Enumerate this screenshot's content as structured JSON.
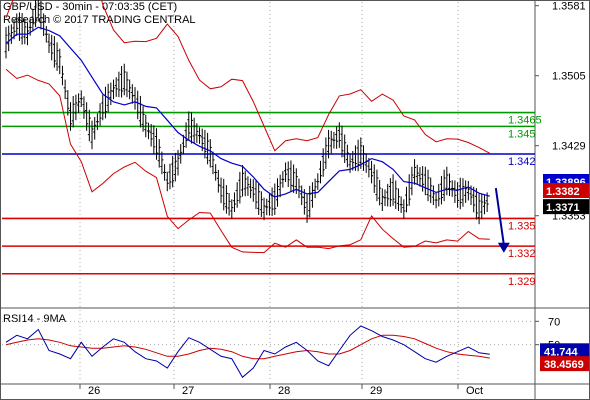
{
  "header": {
    "line1": "GBP/USD - 30min - 07:03:35 (CET)",
    "line2": "Research © 2017 TRADING CENTRAL"
  },
  "colors": {
    "bollinger": "#cc0000",
    "moving_average": "#0000cc",
    "price_bars": "#000000",
    "resistance": "#009900",
    "pivot": "#0000cc",
    "support": "#dd0000",
    "rsi": "#0000aa",
    "rsi_signal": "#cc0000",
    "arrow": "#000099"
  },
  "chart_data": [
    {
      "type": "candlestick",
      "title": "GBP/USD - 30min",
      "x_ticks": [
        "26",
        "27",
        "28",
        "29",
        "Oct"
      ],
      "y_ticks": [
        1.3581,
        1.3505,
        1.3429,
        1.3353
      ],
      "ylim": [
        1.3255,
        1.3585
      ],
      "price_path": [
        1.354,
        1.356,
        1.355,
        1.358,
        1.354,
        1.352,
        1.346,
        1.348,
        1.344,
        1.347,
        1.349,
        1.35,
        1.348,
        1.345,
        1.343,
        1.339,
        1.341,
        1.345,
        1.344,
        1.342,
        1.338,
        1.336,
        1.339,
        1.338,
        1.336,
        1.337,
        1.34,
        1.339,
        1.336,
        1.339,
        1.343,
        1.344,
        1.341,
        1.342,
        1.34,
        1.337,
        1.338,
        1.336,
        1.34,
        1.339,
        1.337,
        1.339,
        1.3375,
        1.338,
        1.336,
        1.337
      ],
      "levels": [
        {
          "label": "1.3465",
          "value": 1.3465,
          "kind": "resistance"
        },
        {
          "label": "1.345",
          "value": 1.345,
          "kind": "resistance"
        },
        {
          "label": "1.342",
          "value": 1.342,
          "kind": "pivot"
        },
        {
          "label": "1.335",
          "value": 1.335,
          "kind": "support"
        },
        {
          "label": "1.332",
          "value": 1.332,
          "kind": "support"
        },
        {
          "label": "1.329",
          "value": 1.329,
          "kind": "support"
        }
      ],
      "price_tags": [
        {
          "label": "1.33896",
          "value": 1.33896,
          "color": "#0000cc"
        },
        {
          "label": "1.3382",
          "value": 1.3382,
          "color": "#cc0000"
        },
        {
          "label": "1.3371",
          "value": 1.3371,
          "color": "#000000"
        }
      ],
      "arrow": {
        "from": 1.3383,
        "to": 1.3315
      }
    },
    {
      "type": "line",
      "title": "RSI14 - 9MA",
      "y_ticks": [
        70,
        50
      ],
      "ylim": [
        18,
        78
      ],
      "series": [
        {
          "name": "RSI14",
          "values": [
            52,
            58,
            55,
            63,
            45,
            42,
            38,
            52,
            40,
            48,
            55,
            52,
            44,
            38,
            36,
            30,
            44,
            56,
            52,
            46,
            40,
            38,
            22,
            30,
            45,
            42,
            48,
            52,
            45,
            36,
            32,
            45,
            58,
            66,
            62,
            57,
            54,
            50,
            44,
            38,
            35,
            40,
            44,
            48,
            43,
            41.744
          ]
        },
        {
          "name": "9MA",
          "values": [
            50,
            52,
            54,
            55,
            54,
            52,
            49,
            48,
            47,
            47,
            48,
            49,
            48,
            46,
            43,
            40,
            40,
            42,
            45,
            47,
            46,
            44,
            40,
            38,
            38,
            40,
            42,
            44,
            45,
            44,
            42,
            42,
            45,
            50,
            55,
            58,
            58,
            57,
            55,
            51,
            47,
            44,
            42,
            41,
            40,
            38.4569
          ]
        }
      ],
      "value_tags": [
        {
          "label": "41.744",
          "value": 41.744,
          "color": "#0000aa"
        },
        {
          "label": "38.4569",
          "value": 38.4569,
          "color": "#cc0000"
        }
      ]
    }
  ]
}
